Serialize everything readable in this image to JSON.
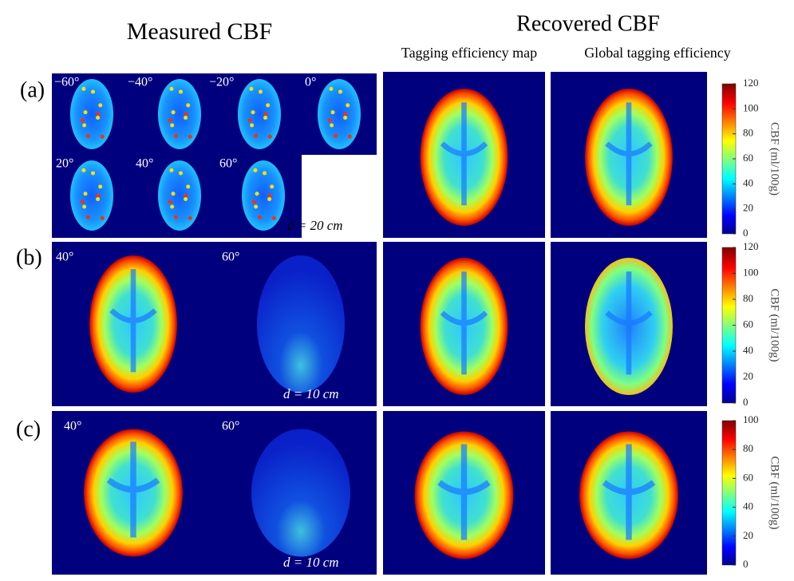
{
  "header": {
    "measured": "Measured CBF",
    "recovered": "Recovered CBF",
    "method_1": "Tagging efficiency map",
    "method_2": "Global tagging efficiency"
  },
  "rows": [
    {
      "label": "(a)",
      "angles": [
        "−60°",
        "−40°",
        "−20°",
        "0°",
        "20°",
        "40°",
        "60°"
      ],
      "distance": "d = 20 cm",
      "colorbar": {
        "ticks": [
          120,
          100,
          80,
          60,
          40,
          20,
          0
        ],
        "label": "CBF (ml/100g)"
      }
    },
    {
      "label": "(b)",
      "angles": [
        "40°",
        "60°"
      ],
      "distance": "d = 10 cm",
      "colorbar": {
        "ticks": [
          120,
          100,
          80,
          60,
          40,
          20,
          0
        ],
        "label": "CBF (ml/100g)"
      }
    },
    {
      "label": "(c)",
      "angles": [
        "40°",
        "60°"
      ],
      "distance": "d = 10 cm",
      "colorbar": {
        "ticks": [
          100,
          80,
          60,
          40,
          20,
          0
        ],
        "label": "CBF (ml/100g)"
      }
    }
  ]
}
